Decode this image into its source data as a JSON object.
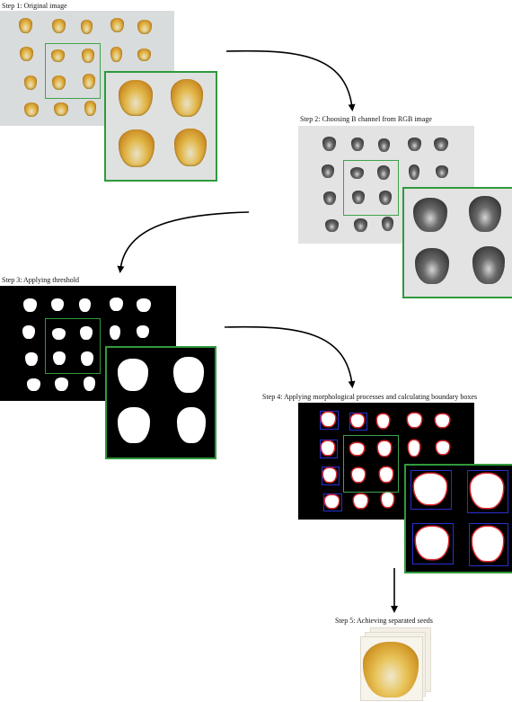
{
  "steps": {
    "step1": "Step 1: Original image",
    "step2": "Step 2: Choosing B channel from RGB image",
    "step3": "Step 3: Applying threshold",
    "step4": "Step 4: Applying morphological processes and calculating boundary boxes",
    "step5": "Step 5: Achieving separated seeds"
  },
  "colors": {
    "highlight_frame": "#2f9a3d",
    "contour": "#d8262b",
    "bounding_box": "#2a2fd0",
    "arrow": "#000000"
  }
}
